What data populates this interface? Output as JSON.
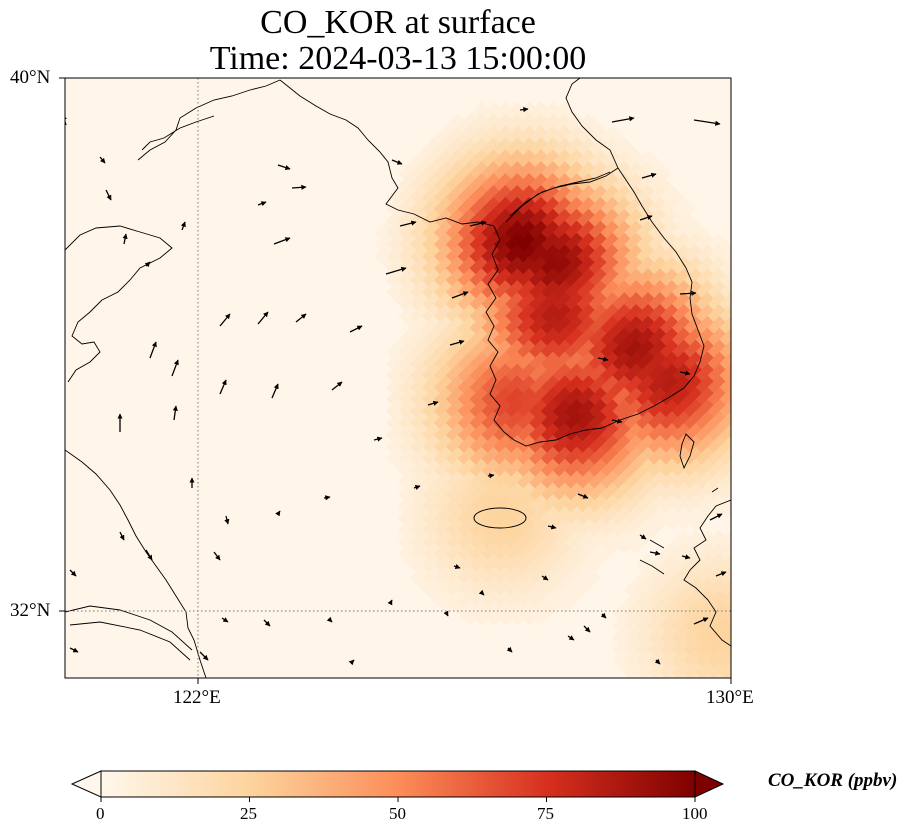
{
  "title": {
    "line1": "CO_KOR at surface",
    "line2": "Time: 2024-03-13 15:00:00"
  },
  "axes": {
    "lat_ticks": [
      {
        "label": "40°N",
        "value": 40
      },
      {
        "label": "32°N",
        "value": 32
      }
    ],
    "lon_ticks": [
      {
        "label": "122°E",
        "value": 122
      },
      {
        "label": "130°E",
        "value": 130
      }
    ],
    "extent": {
      "lon_min": 120,
      "lon_max": 130,
      "lat_min": 31,
      "lat_max": 40
    },
    "gridlines": "dotted"
  },
  "colorbar": {
    "label": "CO_KOR (ppbv)",
    "ticks": [
      "0",
      "25",
      "50",
      "75",
      "100"
    ],
    "min": 0,
    "max": 100,
    "extend": "both",
    "colormap": "OrRd",
    "colors": [
      "#fff7ec",
      "#fdd49e",
      "#fc8d59",
      "#d7301f",
      "#7f0000"
    ]
  },
  "chart_data": {
    "type": "heatmap",
    "variable": "CO_KOR",
    "units": "ppbv",
    "hotspots": [
      {
        "lon": 126.9,
        "lat": 37.5,
        "value": 100
      },
      {
        "lon": 127.4,
        "lat": 37.2,
        "value": 95
      },
      {
        "lon": 128.6,
        "lat": 35.9,
        "value": 90
      },
      {
        "lon": 129.1,
        "lat": 35.4,
        "value": 85
      },
      {
        "lon": 127.7,
        "lat": 34.9,
        "value": 90
      },
      {
        "lon": 126.8,
        "lat": 35.1,
        "value": 70
      },
      {
        "lon": 127.4,
        "lat": 36.4,
        "value": 85
      },
      {
        "lon": 126.6,
        "lat": 33.4,
        "value": 25
      },
      {
        "lon": 129.9,
        "lat": 31.6,
        "value": 25
      }
    ],
    "wind_vectors": "black arrows, predominantly southwesterly to westerly flow"
  }
}
